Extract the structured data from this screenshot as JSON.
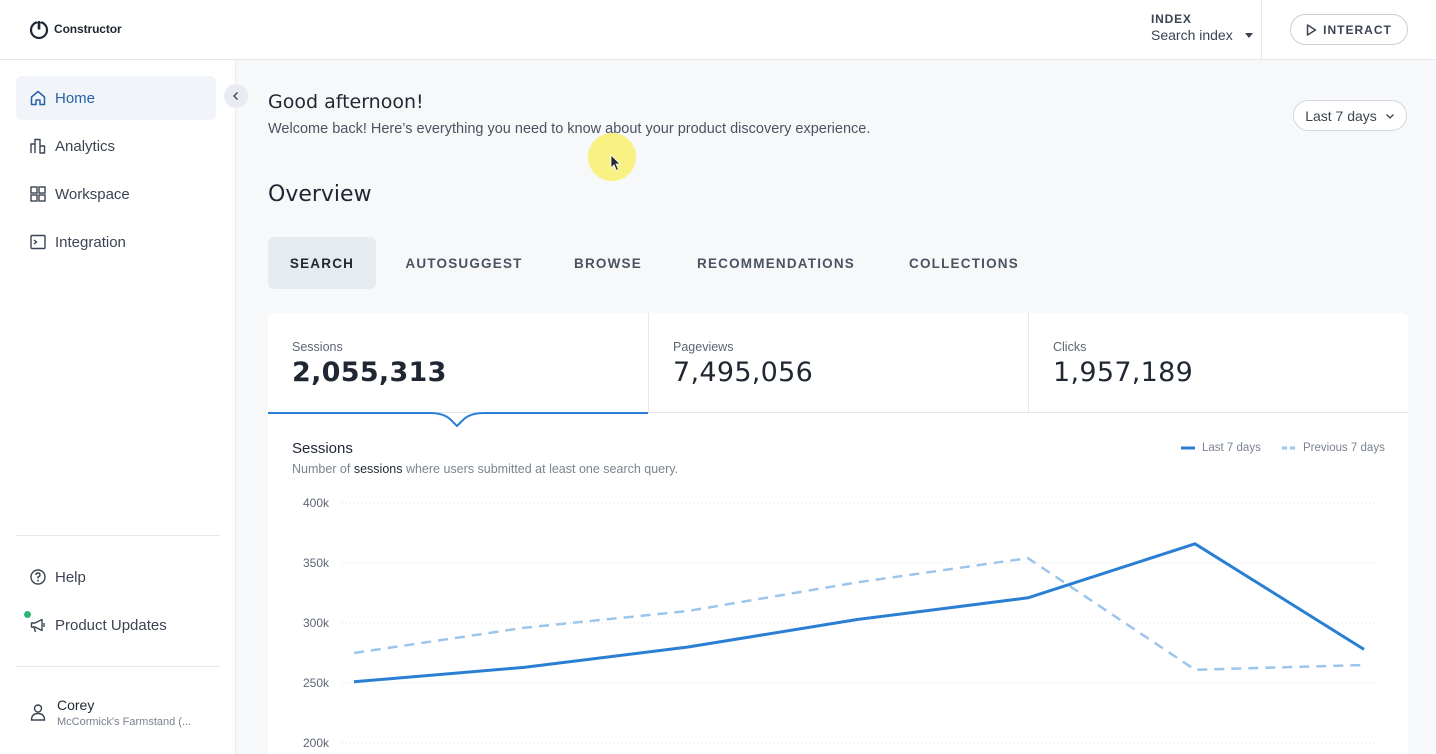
{
  "app": {
    "brand": "Constructor",
    "accent": "#2a7fd4"
  },
  "topbar": {
    "index_label": "INDEX",
    "index_value": "Search index",
    "interact_label": "INTERACT"
  },
  "sidebar": {
    "items": [
      {
        "label": "Home",
        "icon": "home-icon",
        "active": true
      },
      {
        "label": "Analytics",
        "icon": "analytics-icon"
      },
      {
        "label": "Workspace",
        "icon": "workspace-icon"
      },
      {
        "label": "Integration",
        "icon": "integration-icon"
      }
    ],
    "help_label": "Help",
    "updates_label": "Product Updates",
    "user": {
      "name": "Corey",
      "org": "McCormick's Farmstand (..."
    }
  },
  "main": {
    "greeting": "Good afternoon!",
    "welcome": "Welcome back! Here’s everything you need to know about your product discovery experience.",
    "range_label": "Last 7 days",
    "overview_title": "Overview",
    "tabs": [
      "SEARCH",
      "AUTOSUGGEST",
      "BROWSE",
      "RECOMMENDATIONS",
      "COLLECTIONS"
    ],
    "stats": [
      {
        "label": "Sessions",
        "value": "2,055,313"
      },
      {
        "label": "Pageviews",
        "value": "7,495,056"
      },
      {
        "label": "Clicks",
        "value": "1,957,189"
      }
    ],
    "chart": {
      "title": "Sessions",
      "subtitle_pre": "Number of ",
      "subtitle_em": "sessions",
      "subtitle_post": " where users submitted at least one search query."
    }
  },
  "chart_data": {
    "type": "line",
    "title": "Sessions",
    "y_ticks": [
      "400k",
      "350k",
      "300k",
      "250k",
      "200k"
    ],
    "ylim": [
      200000,
      400000
    ],
    "x": [
      1,
      2,
      3,
      4,
      5,
      6,
      7
    ],
    "series": [
      {
        "name": "Last 7 days",
        "style": "solid",
        "color": "#2a7fd4",
        "values": [
          251000,
          263000,
          280000,
          303000,
          321000,
          366000,
          278000
        ]
      },
      {
        "name": "Previous 7 days",
        "style": "dashed",
        "color": "#9cc5ec",
        "values": [
          275000,
          296000,
          310000,
          334000,
          354000,
          261000,
          265000
        ]
      }
    ],
    "grid": true,
    "legend": "top-right"
  }
}
